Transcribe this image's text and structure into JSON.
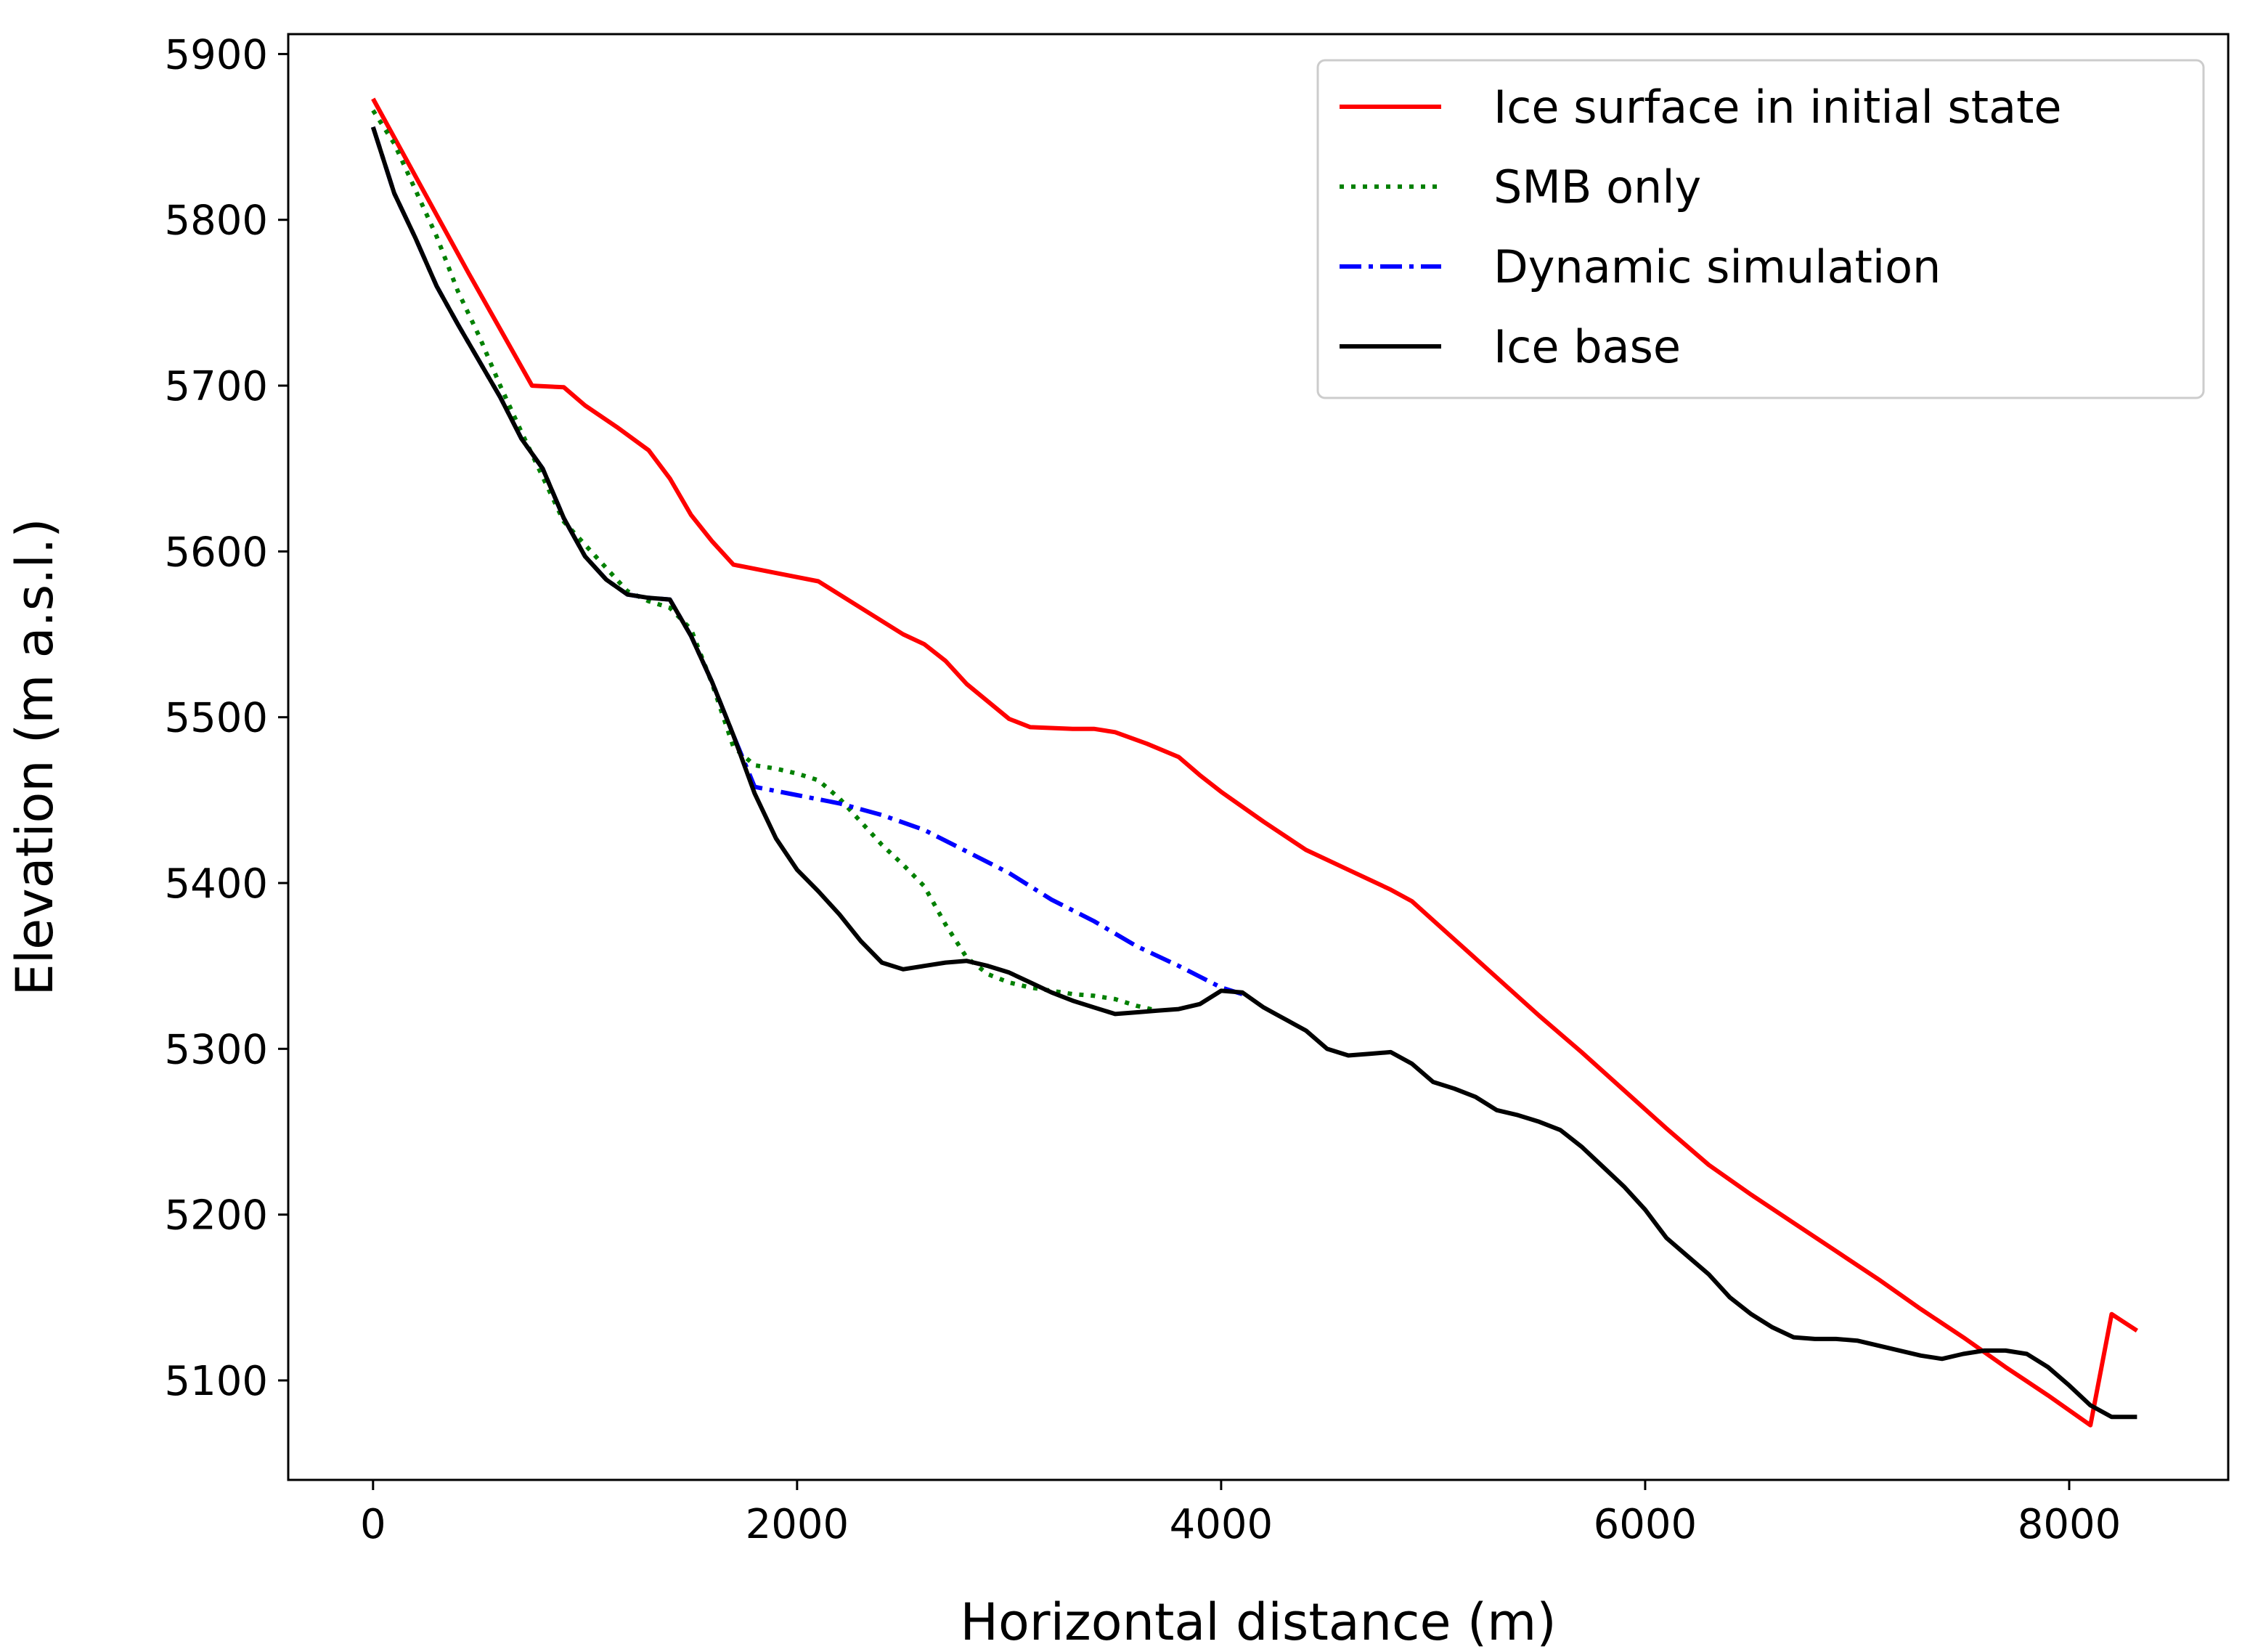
{
  "chart_data": {
    "type": "line",
    "title": "",
    "xlabel": "Horizontal distance (m)",
    "ylabel": "Elevation (m a.s.l.)",
    "xlim": [
      -400,
      8750
    ],
    "ylim": [
      5040,
      5912
    ],
    "grid": false,
    "legend_position": "top-right",
    "x_ticks": [
      0,
      2000,
      4000,
      6000,
      8000
    ],
    "x_tick_labels": [
      "0",
      "2000",
      "4000",
      "6000",
      "8000"
    ],
    "y_ticks": [
      5100,
      5200,
      5300,
      5400,
      5500,
      5600,
      5700,
      5800,
      5900
    ],
    "y_tick_labels": [
      "5100",
      "5200",
      "5300",
      "5400",
      "5500",
      "5600",
      "5700",
      "5800",
      "5900"
    ],
    "series": [
      {
        "name": "Ice surface in initial state",
        "color": "#ff0000",
        "dash": "solid",
        "x": [
          0,
          150,
          300,
          450,
          600,
          750,
          900,
          1000,
          1150,
          1300,
          1400,
          1500,
          1600,
          1700,
          1900,
          2100,
          2300,
          2500,
          2600,
          2700,
          2800,
          3000,
          3100,
          3300,
          3400,
          3500,
          3650,
          3800,
          3900,
          4000,
          4200,
          4400,
          4600,
          4800,
          4900,
          5100,
          5300,
          5500,
          5700,
          5900,
          6100,
          6300,
          6500,
          6700,
          6900,
          7100,
          7300,
          7500,
          7700,
          7900,
          8100,
          8200,
          8320
        ],
        "y": [
          5873,
          5838,
          5803,
          5768,
          5734,
          5700,
          5699,
          5688,
          5675,
          5661,
          5644,
          5622,
          5606,
          5592,
          5587,
          5582,
          5566,
          5550,
          5544,
          5534,
          5520,
          5499,
          5494,
          5493,
          5493,
          5491,
          5484,
          5476,
          5465,
          5455,
          5437,
          5420,
          5408,
          5396,
          5389,
          5366,
          5343,
          5320,
          5298,
          5275,
          5252,
          5230,
          5212,
          5195,
          5178,
          5161,
          5143,
          5126,
          5108,
          5091,
          5073,
          5140,
          5130
        ]
      },
      {
        "name": "SMB only",
        "color": "#008000",
        "dash": "dotted",
        "x": [
          0,
          100,
          200,
          300,
          400,
          500,
          600,
          700,
          800,
          900,
          1000,
          1100,
          1200,
          1300,
          1400,
          1500,
          1600,
          1700,
          1800,
          1900,
          2000,
          2100,
          2200,
          2300,
          2400,
          2500,
          2600,
          2700,
          2800,
          2900,
          3000,
          3100,
          3200,
          3300,
          3400,
          3500,
          3600,
          3700
        ],
        "y": [
          5866,
          5846,
          5818,
          5790,
          5757,
          5730,
          5700,
          5672,
          5645,
          5618,
          5604,
          5590,
          5576,
          5570,
          5566,
          5553,
          5520,
          5482,
          5471,
          5469,
          5466,
          5462,
          5451,
          5437,
          5423,
          5411,
          5398,
          5375,
          5355,
          5345,
          5340,
          5337,
          5335,
          5333,
          5332,
          5330,
          5326,
          5323
        ]
      },
      {
        "name": "Dynamic simulation",
        "color": "#0000ff",
        "dash": "dashdot",
        "x": [
          0,
          100,
          200,
          300,
          400,
          500,
          600,
          700,
          800,
          900,
          1000,
          1100,
          1200,
          1300,
          1400,
          1500,
          1600,
          1700,
          1800,
          2000,
          2200,
          2400,
          2600,
          2800,
          3000,
          3200,
          3400,
          3600,
          3800,
          4000,
          4100
        ],
        "y": [
          5856,
          5816,
          5789,
          5760,
          5737,
          5715,
          5693,
          5668,
          5650,
          5620,
          5597,
          5583,
          5574,
          5572,
          5571,
          5549,
          5521,
          5489,
          5458,
          5453,
          5448,
          5441,
          5432,
          5419,
          5406,
          5390,
          5377,
          5362,
          5350,
          5337,
          5333
        ]
      },
      {
        "name": "Ice base",
        "color": "#000000",
        "dash": "solid",
        "x": [
          0,
          100,
          200,
          300,
          400,
          500,
          600,
          700,
          800,
          900,
          1000,
          1100,
          1200,
          1300,
          1400,
          1500,
          1600,
          1700,
          1800,
          1900,
          2000,
          2100,
          2200,
          2300,
          2400,
          2500,
          2600,
          2700,
          2800,
          2900,
          3000,
          3100,
          3200,
          3300,
          3400,
          3500,
          3600,
          3700,
          3800,
          3900,
          4000,
          4100,
          4200,
          4300,
          4400,
          4500,
          4600,
          4700,
          4800,
          4900,
          5000,
          5100,
          5200,
          5300,
          5400,
          5500,
          5600,
          5700,
          5800,
          5900,
          6000,
          6100,
          6200,
          6300,
          6400,
          6500,
          6600,
          6700,
          6800,
          6900,
          7000,
          7100,
          7200,
          7300,
          7400,
          7500,
          7600,
          7700,
          7800,
          7900,
          8000,
          8100,
          8200,
          8320
        ],
        "y": [
          5856,
          5816,
          5789,
          5760,
          5737,
          5715,
          5693,
          5668,
          5650,
          5620,
          5597,
          5583,
          5574,
          5572,
          5571,
          5549,
          5521,
          5489,
          5454,
          5427,
          5408,
          5395,
          5381,
          5365,
          5352,
          5348,
          5350,
          5352,
          5353,
          5350,
          5346,
          5340,
          5334,
          5329,
          5325,
          5321,
          5322,
          5323,
          5324,
          5327,
          5335,
          5334,
          5325,
          5318,
          5311,
          5300,
          5296,
          5297,
          5298,
          5291,
          5280,
          5276,
          5271,
          5263,
          5260,
          5256,
          5251,
          5241,
          5229,
          5217,
          5203,
          5186,
          5175,
          5164,
          5150,
          5140,
          5132,
          5126,
          5125,
          5125,
          5124,
          5121,
          5118,
          5115,
          5113,
          5116,
          5118,
          5118,
          5116,
          5108,
          5097,
          5085,
          5078,
          5078
        ]
      }
    ]
  }
}
